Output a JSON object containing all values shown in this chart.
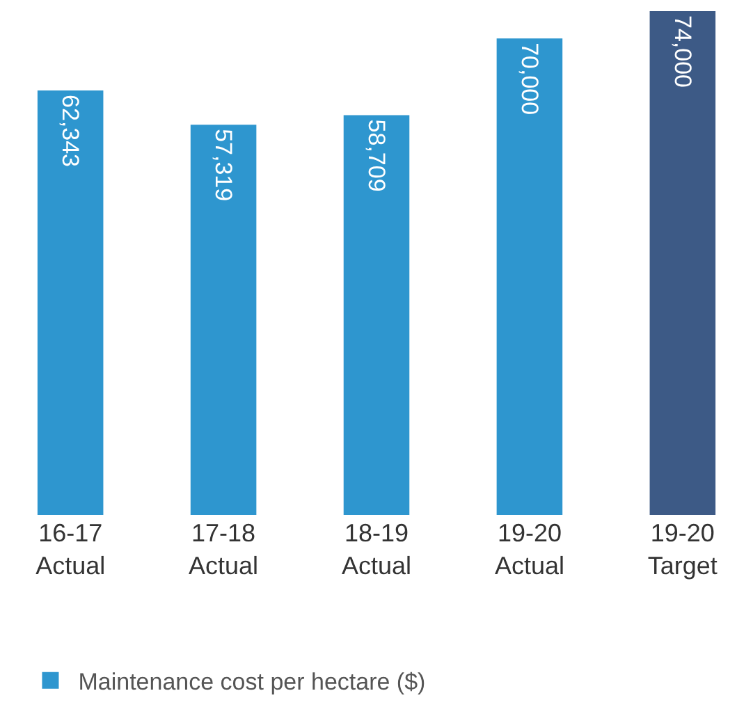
{
  "chart_data": {
    "type": "bar",
    "categories": [
      "16-17\nActual",
      "17-18\nActual",
      "18-19\nActual",
      "19-20\nActual",
      "19-20\nTarget"
    ],
    "series": [
      {
        "name": "Maintenance cost per hectare ($)",
        "colors": [
          "#2e96cf",
          "#2e96cf",
          "#2e96cf",
          "#2e96cf",
          "#3d5a86"
        ],
        "values": [
          62343,
          57319,
          58709,
          70000,
          74000
        ],
        "value_labels": [
          "62,343",
          "57,319",
          "58,709",
          "70,000",
          "74,000"
        ]
      }
    ],
    "legend": "bottom left"
  }
}
